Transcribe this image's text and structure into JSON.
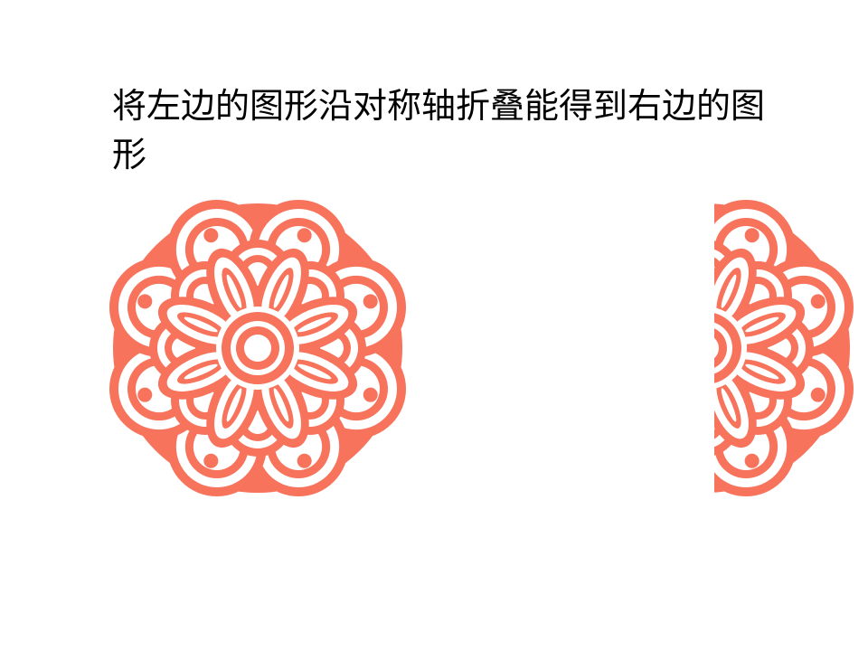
{
  "slide": {
    "title": "将左边的图形沿对称轴折叠能得到右边的图形"
  },
  "figures": [
    {
      "id": "full",
      "part": "whole"
    },
    {
      "id": "half",
      "part": "right-half"
    }
  ],
  "colors": {
    "pattern": "#f7735c",
    "background": "#ffffff",
    "text": "#000000"
  }
}
